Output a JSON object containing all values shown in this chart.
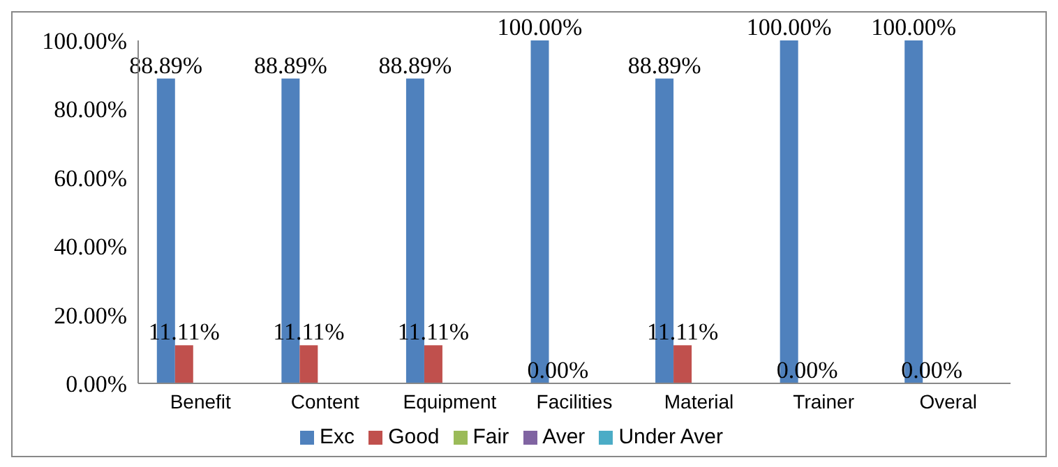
{
  "chart_data": {
    "type": "bar",
    "categories": [
      "Benefit",
      "Content",
      "Equipment",
      "Facilities",
      "Material",
      "Trainer",
      "Overal"
    ],
    "series": [
      {
        "name": "Exc",
        "color": "#4f81bd",
        "values": [
          88.89,
          88.89,
          88.89,
          100,
          88.89,
          100,
          100
        ],
        "value_labels": [
          "88.89%",
          "88.89%",
          "88.89%",
          "100.00%",
          "88.89%",
          "100.00%",
          "100.00%"
        ]
      },
      {
        "name": "Good",
        "color": "#c0504d",
        "values": [
          11.11,
          11.11,
          11.11,
          0,
          11.11,
          0,
          0
        ],
        "value_labels": [
          "11.11%",
          "11.11%",
          "11.11%",
          "0.00%",
          "11.11%",
          "0.00%",
          "0.00%"
        ]
      },
      {
        "name": "Fair",
        "color": "#9bbb59",
        "values": [
          0,
          0,
          0,
          0,
          0,
          0,
          0
        ]
      },
      {
        "name": "Aver",
        "color": "#8064a2",
        "values": [
          0,
          0,
          0,
          0,
          0,
          0,
          0
        ]
      },
      {
        "name": "Under Aver",
        "color": "#4bacc6",
        "values": [
          0,
          0,
          0,
          0,
          0,
          0,
          0
        ]
      }
    ],
    "ylim": [
      0,
      100
    ],
    "yticks": [
      {
        "value": 0,
        "label": "0.00%"
      },
      {
        "value": 20,
        "label": "20.00%"
      },
      {
        "value": 40,
        "label": "40.00%"
      },
      {
        "value": 60,
        "label": "60.00%"
      },
      {
        "value": 80,
        "label": "80.00%"
      },
      {
        "value": 100,
        "label": "100.00%"
      }
    ],
    "grid": false,
    "legend": "bottom"
  }
}
